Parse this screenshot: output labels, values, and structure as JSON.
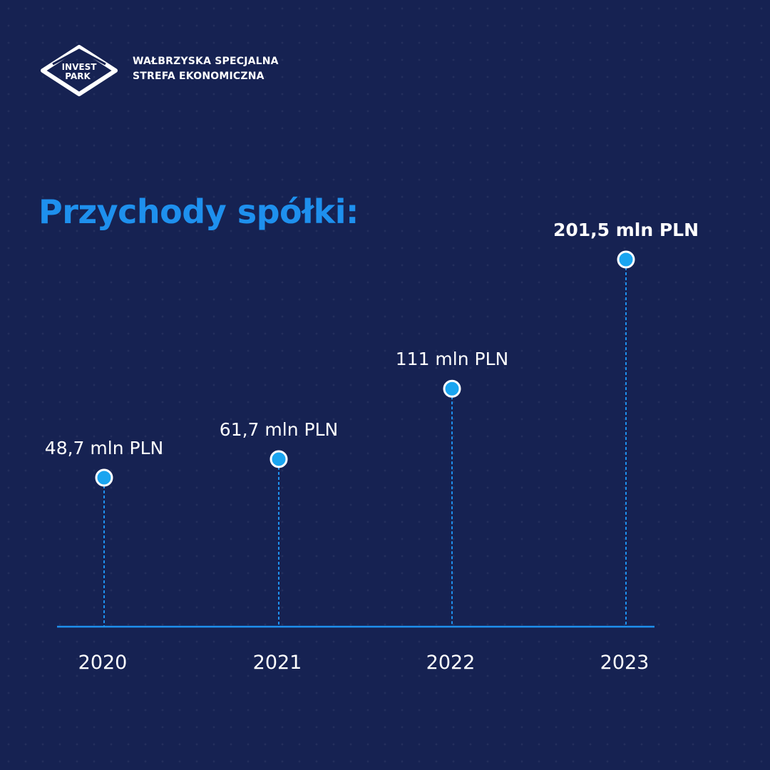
{
  "brand": {
    "logo_text_line1": "INVEST",
    "logo_text_line2": "PARK",
    "name_line1": "WAŁBRZYSKA SPECJALNA",
    "name_line2": "STREFA EKONOMICZNA"
  },
  "colors": {
    "background": "#162252",
    "accent": "#1e90ee",
    "marker_fill": "#1aa5f0",
    "text": "#ffffff"
  },
  "chart_data": {
    "type": "scatter",
    "title": "Przychody spółki:",
    "xlabel": "",
    "ylabel": "",
    "categories": [
      "2020",
      "2021",
      "2022",
      "2023"
    ],
    "values": [
      48.7,
      61.7,
      111,
      201.5
    ],
    "unit": "mln PLN",
    "data_labels": [
      "48,7 mln PLN",
      "61,7 mln PLN",
      "111 mln PLN",
      "201,5 mln PLN"
    ],
    "highlighted_index": 3,
    "grid": false,
    "legend": "none",
    "style": "lollipop with dashed stems"
  }
}
